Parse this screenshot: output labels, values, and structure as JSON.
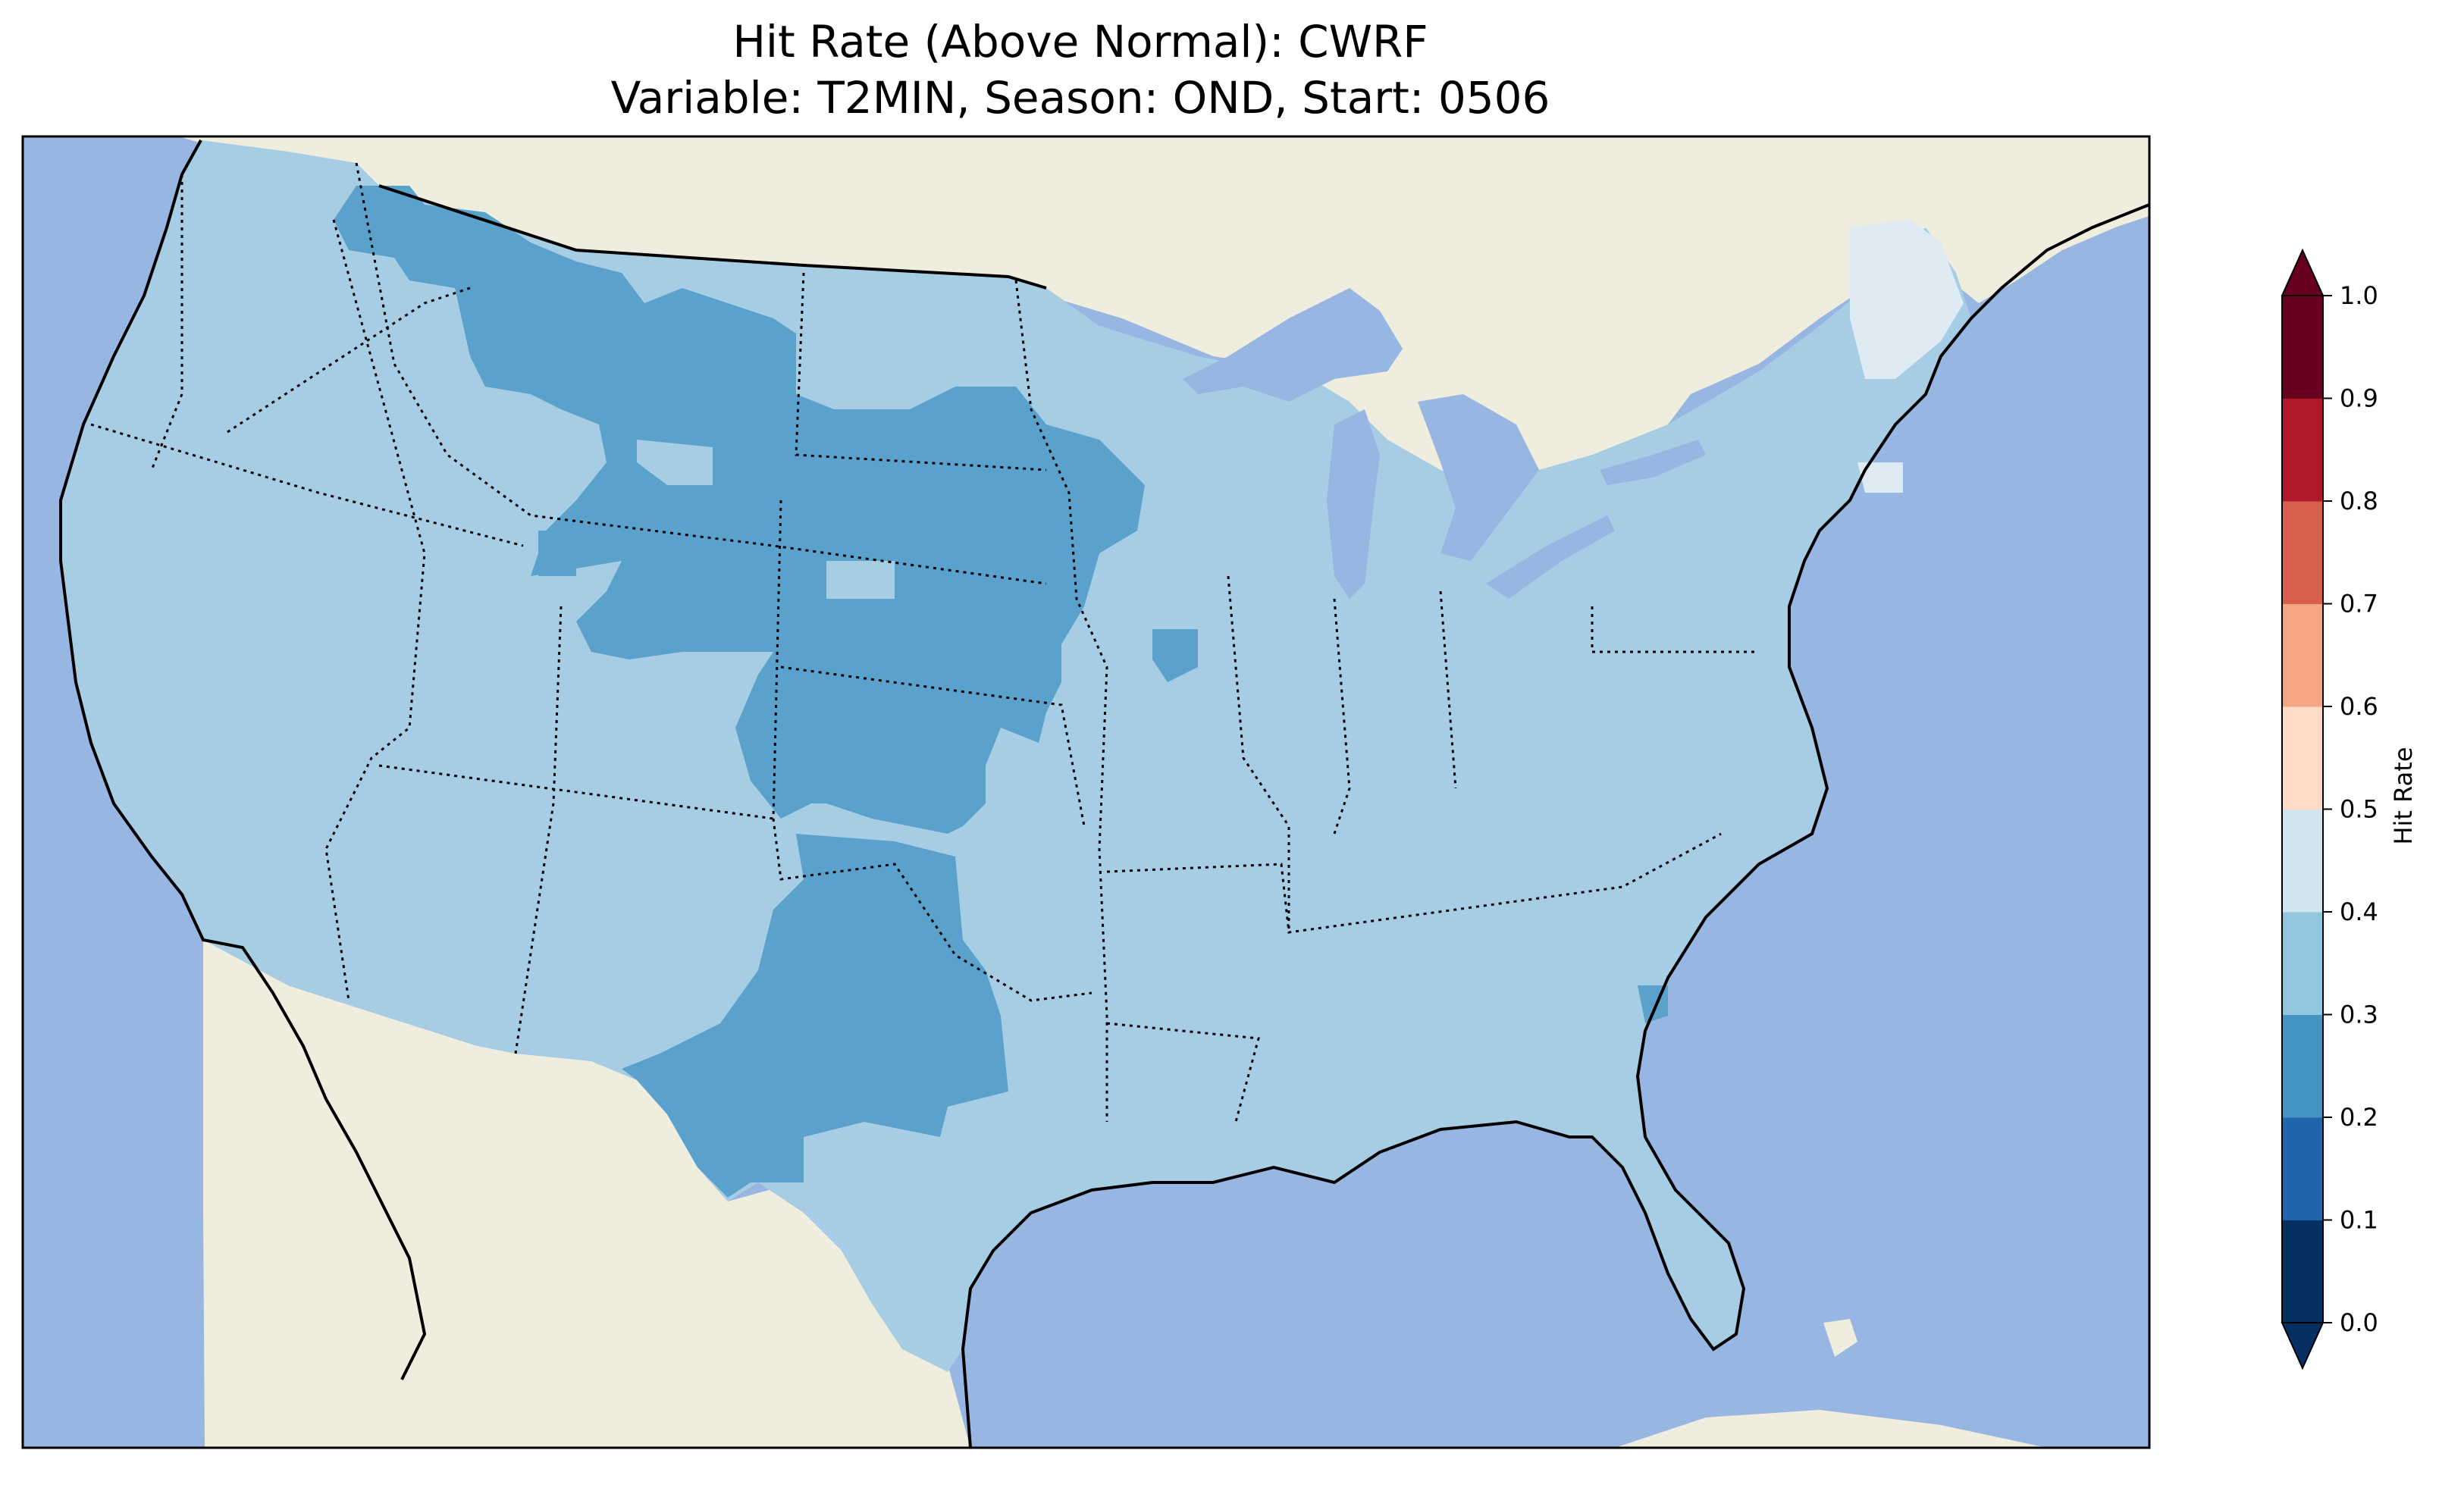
{
  "title": {
    "line1": "Hit Rate (Above Normal): CWRF",
    "line2": "Variable: T2MIN, Season: OND, Start: 0506"
  },
  "colorbar": {
    "label": "Hit Rate",
    "ticks": [
      "0.0",
      "0.1",
      "0.2",
      "0.3",
      "0.4",
      "0.5",
      "0.6",
      "0.7",
      "0.8",
      "0.9",
      "1.0"
    ],
    "extend": "both",
    "levels": [
      {
        "range": [
          0.0,
          0.1
        ],
        "color": "#053061"
      },
      {
        "range": [
          0.1,
          0.2
        ],
        "color": "#2166ac"
      },
      {
        "range": [
          0.2,
          0.3
        ],
        "color": "#4393c3"
      },
      {
        "range": [
          0.3,
          0.4
        ],
        "color": "#92c5de"
      },
      {
        "range": [
          0.4,
          0.5
        ],
        "color": "#d1e5f0"
      },
      {
        "range": [
          0.5,
          0.6
        ],
        "color": "#fddbc7"
      },
      {
        "range": [
          0.6,
          0.7
        ],
        "color": "#f4a582"
      },
      {
        "range": [
          0.7,
          0.8
        ],
        "color": "#d6604d"
      },
      {
        "range": [
          0.8,
          0.9
        ],
        "color": "#b2182b"
      },
      {
        "range": [
          0.9,
          1.0
        ],
        "color": "#67001f"
      }
    ],
    "under_color": "#053061",
    "over_color": "#67001f"
  },
  "map": {
    "ocean_color": "#97b6e1",
    "land_color": "#efedde",
    "region": "Contiguous United States",
    "dominant_class": "0.3-0.4",
    "secondary_class": "0.2-0.3 (Northern Plains, Montana, Wyoming, Nebraska, Kansas, Texas)",
    "highest_class": "0.4-0.5 (Maine, Massachusetts)"
  }
}
